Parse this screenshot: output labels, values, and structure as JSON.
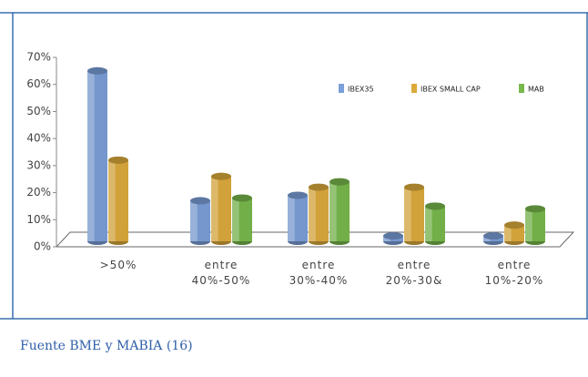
{
  "chart_data": {
    "type": "bar",
    "categories": [
      ">50%",
      "entre\n40%-50%",
      "entre\n30%-40%",
      "entre\n20%-30&",
      "entre\n10%-20%"
    ],
    "series": [
      {
        "name": "IBEX35",
        "color": "#7b9fd8",
        "values": [
          63,
          15,
          17,
          2,
          2
        ]
      },
      {
        "name": "IBEX SMALL CAP",
        "color": "#dcaa3c",
        "values": [
          30,
          24,
          20,
          20,
          6
        ]
      },
      {
        "name": "MAB",
        "color": "#78b84c",
        "values": [
          null,
          16,
          22,
          13,
          12
        ]
      }
    ],
    "ylim": [
      0,
      70
    ],
    "yticks": [
      {
        "value": 0,
        "label": "0%"
      },
      {
        "value": 10,
        "label": "10%"
      },
      {
        "value": 20,
        "label": "20%"
      },
      {
        "value": 30,
        "label": "30%"
      },
      {
        "value": 40,
        "label": "40%"
      },
      {
        "value": 50,
        "label": "50%"
      },
      {
        "value": 60,
        "label": "60%"
      },
      {
        "value": 70,
        "label": "70%"
      }
    ],
    "legend": "top-right"
  },
  "source": "Fuente BME y MABIA  (16)"
}
